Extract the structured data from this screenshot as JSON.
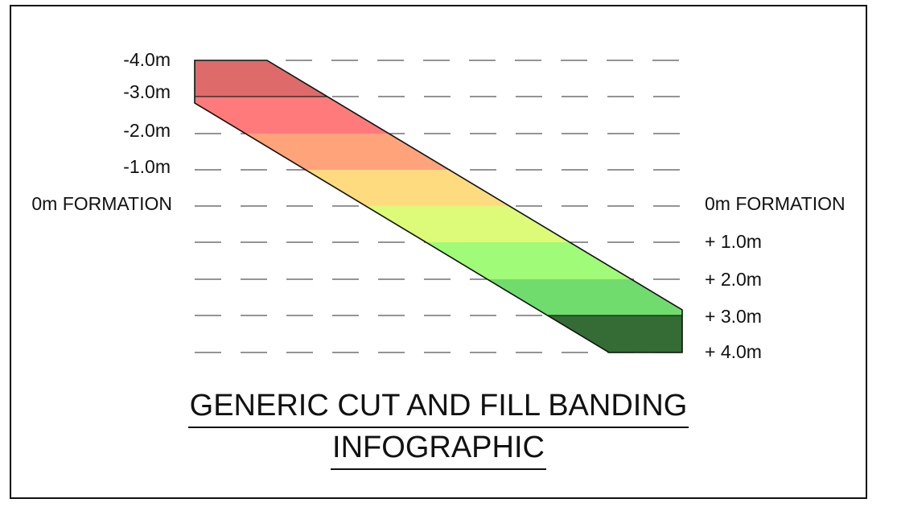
{
  "left_labels": [
    "-4.0m",
    "-3.0m",
    "-2.0m",
    "-1.0m",
    "0m FORMATION"
  ],
  "right_labels": [
    "0m FORMATION",
    "+ 1.0m",
    "+ 2.0m",
    "+ 3.0m",
    "+ 4.0m"
  ],
  "title_line1": "GENERIC CUT AND FILL BANDING",
  "title_line2": "INFOGRAPHIC",
  "bands": [
    {
      "depth": "-4.0m to -3.0m",
      "color": "#de6b69"
    },
    {
      "depth": "-3.0m to -2.0m",
      "color": "#ff7b7b"
    },
    {
      "depth": "-2.0m to -1.0m",
      "color": "#ffa37b"
    },
    {
      "depth": "-1.0m to 0m",
      "color": "#ffdb80"
    },
    {
      "depth": "0m to +1.0m",
      "color": "#ddfb78"
    },
    {
      "depth": "+1.0m to +2.0m",
      "color": "#a0fb78"
    },
    {
      "depth": "+2.0m to +3.0m",
      "color": "#70dc6e"
    },
    {
      "depth": "+3.0m to +4.0m",
      "color": "#356b35"
    }
  ],
  "outline_color": "#111111"
}
